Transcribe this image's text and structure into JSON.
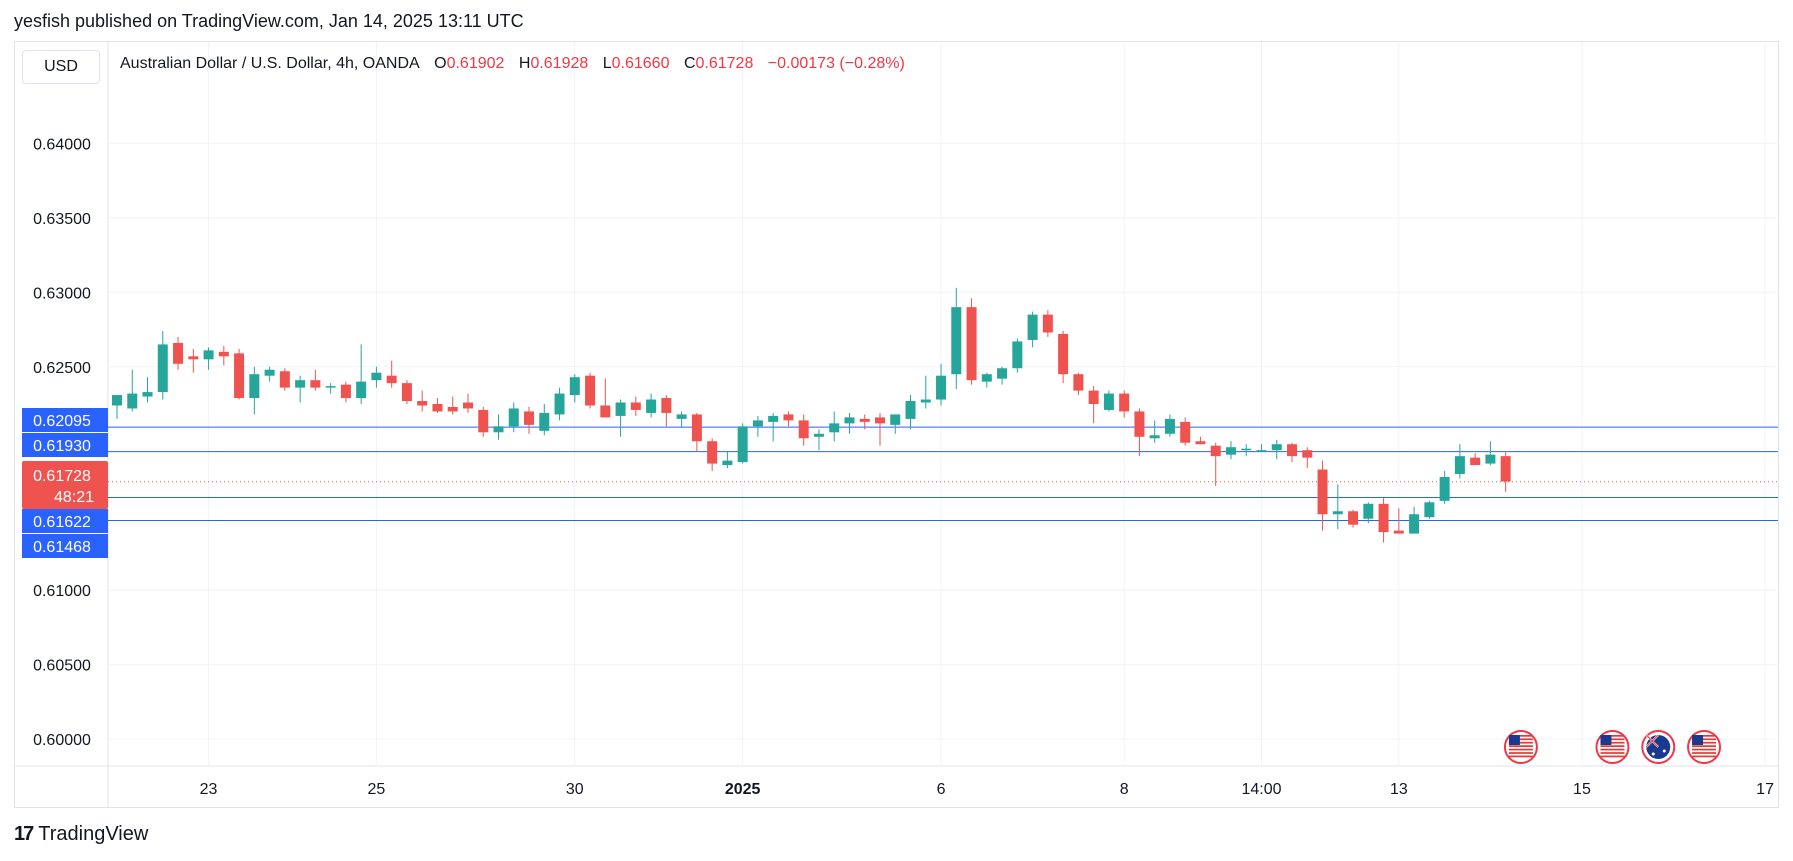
{
  "header": {
    "publisher_line": "yesfish published on TradingView.com, Jan 14, 2025 13:11 UTC"
  },
  "toolbar": {
    "currency_label": "USD"
  },
  "legend": {
    "symbol": "Australian Dollar / U.S. Dollar, 4h, OANDA",
    "open_label": "O",
    "open_value": "0.61902",
    "high_label": "H",
    "high_value": "0.61928",
    "low_label": "L",
    "low_value": "0.61660",
    "close_label": "C",
    "close_value": "0.61728",
    "change": "−0.00173 (−0.28%)"
  },
  "footer": {
    "brand": "TradingView",
    "brand_mark": "17"
  },
  "colors": {
    "up": "#26a69a",
    "down": "#ef5350",
    "hline": "#2962ff",
    "grid": "#f0f3fa",
    "price_tag": "#ef5350",
    "level_tag": "#2962ff"
  },
  "chart_data": {
    "type": "candlestick",
    "title": "Australian Dollar / U.S. Dollar, 4h, OANDA",
    "ylim": [
      0.5982,
      0.6468
    ],
    "y_ticks": [
      "0.64000",
      "0.63500",
      "0.63000",
      "0.62500",
      "0.61000",
      "0.60500",
      "0.60000"
    ],
    "y_tick_values": [
      0.64,
      0.635,
      0.63,
      0.625,
      0.61,
      0.605,
      0.6
    ],
    "x_ticks": [
      {
        "label": "23",
        "index": 6,
        "bold": false
      },
      {
        "label": "25",
        "index": 17,
        "bold": false
      },
      {
        "label": "30",
        "index": 30,
        "bold": false
      },
      {
        "label": "2025",
        "index": 41,
        "bold": true
      },
      {
        "label": "6",
        "index": 54,
        "bold": false
      },
      {
        "label": "8",
        "index": 66,
        "bold": false
      },
      {
        "label": "14:00",
        "index": 75,
        "bold": false
      },
      {
        "label": "13",
        "index": 84,
        "bold": false
      },
      {
        "label": "15",
        "index": 96,
        "bold": false
      },
      {
        "label": "17",
        "index": 108,
        "bold": false
      }
    ],
    "horizontal_levels": [
      {
        "label": "0.62095",
        "value": 0.62095
      },
      {
        "label": "0.61930",
        "value": 0.6193
      },
      {
        "label": "0.61622",
        "value": 0.61622
      },
      {
        "label": "0.61468",
        "value": 0.61468
      }
    ],
    "current_price": {
      "label": "0.61728",
      "value": 0.61728,
      "countdown": "48:21"
    },
    "event_flags": [
      {
        "index": 92,
        "country": "US"
      },
      {
        "index": 98,
        "country": "US"
      },
      {
        "index": 101,
        "country": "AU"
      },
      {
        "index": 104,
        "country": "US"
      }
    ],
    "candles": [
      {
        "o": 0.6224,
        "h": 0.6231,
        "l": 0.6215,
        "c": 0.6231
      },
      {
        "o": 0.6222,
        "h": 0.6248,
        "l": 0.622,
        "c": 0.6232
      },
      {
        "o": 0.623,
        "h": 0.6243,
        "l": 0.6226,
        "c": 0.6233
      },
      {
        "o": 0.6233,
        "h": 0.6274,
        "l": 0.6228,
        "c": 0.6265
      },
      {
        "o": 0.6266,
        "h": 0.627,
        "l": 0.6248,
        "c": 0.6252
      },
      {
        "o": 0.6257,
        "h": 0.6262,
        "l": 0.6246,
        "c": 0.6255
      },
      {
        "o": 0.6255,
        "h": 0.6263,
        "l": 0.6248,
        "c": 0.6261
      },
      {
        "o": 0.626,
        "h": 0.6264,
        "l": 0.6251,
        "c": 0.6257
      },
      {
        "o": 0.6259,
        "h": 0.6262,
        "l": 0.6228,
        "c": 0.6229
      },
      {
        "o": 0.6229,
        "h": 0.625,
        "l": 0.6218,
        "c": 0.6245
      },
      {
        "o": 0.6244,
        "h": 0.625,
        "l": 0.624,
        "c": 0.6248
      },
      {
        "o": 0.6247,
        "h": 0.6249,
        "l": 0.6234,
        "c": 0.6236
      },
      {
        "o": 0.6236,
        "h": 0.6244,
        "l": 0.6226,
        "c": 0.6241
      },
      {
        "o": 0.6241,
        "h": 0.6248,
        "l": 0.6234,
        "c": 0.6236
      },
      {
        "o": 0.6236,
        "h": 0.6239,
        "l": 0.6232,
        "c": 0.6237
      },
      {
        "o": 0.6238,
        "h": 0.624,
        "l": 0.6226,
        "c": 0.6229
      },
      {
        "o": 0.6229,
        "h": 0.6265,
        "l": 0.6225,
        "c": 0.624
      },
      {
        "o": 0.6241,
        "h": 0.625,
        "l": 0.6236,
        "c": 0.6246
      },
      {
        "o": 0.6244,
        "h": 0.6254,
        "l": 0.6236,
        "c": 0.6239
      },
      {
        "o": 0.6239,
        "h": 0.6241,
        "l": 0.6225,
        "c": 0.6227
      },
      {
        "o": 0.6227,
        "h": 0.6234,
        "l": 0.622,
        "c": 0.6224
      },
      {
        "o": 0.6225,
        "h": 0.6229,
        "l": 0.6219,
        "c": 0.622
      },
      {
        "o": 0.6223,
        "h": 0.623,
        "l": 0.6218,
        "c": 0.622
      },
      {
        "o": 0.6226,
        "h": 0.6232,
        "l": 0.6219,
        "c": 0.6222
      },
      {
        "o": 0.6221,
        "h": 0.6223,
        "l": 0.6203,
        "c": 0.6206
      },
      {
        "o": 0.6206,
        "h": 0.6218,
        "l": 0.6201,
        "c": 0.621
      },
      {
        "o": 0.621,
        "h": 0.6226,
        "l": 0.6206,
        "c": 0.6222
      },
      {
        "o": 0.622,
        "h": 0.6223,
        "l": 0.6205,
        "c": 0.6211
      },
      {
        "o": 0.6207,
        "h": 0.6225,
        "l": 0.6204,
        "c": 0.6219
      },
      {
        "o": 0.6218,
        "h": 0.6236,
        "l": 0.6214,
        "c": 0.6232
      },
      {
        "o": 0.6231,
        "h": 0.6245,
        "l": 0.6226,
        "c": 0.6243
      },
      {
        "o": 0.6244,
        "h": 0.6246,
        "l": 0.6222,
        "c": 0.6224
      },
      {
        "o": 0.6224,
        "h": 0.6242,
        "l": 0.6216,
        "c": 0.6216
      },
      {
        "o": 0.6217,
        "h": 0.6228,
        "l": 0.6203,
        "c": 0.6226
      },
      {
        "o": 0.6226,
        "h": 0.623,
        "l": 0.6217,
        "c": 0.6221
      },
      {
        "o": 0.6219,
        "h": 0.6232,
        "l": 0.6216,
        "c": 0.6228
      },
      {
        "o": 0.6229,
        "h": 0.6231,
        "l": 0.621,
        "c": 0.6219
      },
      {
        "o": 0.6215,
        "h": 0.622,
        "l": 0.6209,
        "c": 0.6218
      },
      {
        "o": 0.6218,
        "h": 0.6219,
        "l": 0.6193,
        "c": 0.62
      },
      {
        "o": 0.62,
        "h": 0.6202,
        "l": 0.618,
        "c": 0.6185
      },
      {
        "o": 0.6184,
        "h": 0.6193,
        "l": 0.6182,
        "c": 0.6187
      },
      {
        "o": 0.6186,
        "h": 0.6212,
        "l": 0.6185,
        "c": 0.621
      },
      {
        "o": 0.621,
        "h": 0.6217,
        "l": 0.6203,
        "c": 0.6214
      },
      {
        "o": 0.6213,
        "h": 0.6219,
        "l": 0.62,
        "c": 0.6217
      },
      {
        "o": 0.6218,
        "h": 0.622,
        "l": 0.621,
        "c": 0.6214
      },
      {
        "o": 0.6214,
        "h": 0.6218,
        "l": 0.6197,
        "c": 0.6202
      },
      {
        "o": 0.6203,
        "h": 0.6208,
        "l": 0.6194,
        "c": 0.6205
      },
      {
        "o": 0.6206,
        "h": 0.622,
        "l": 0.62,
        "c": 0.6212
      },
      {
        "o": 0.6212,
        "h": 0.6219,
        "l": 0.6205,
        "c": 0.6216
      },
      {
        "o": 0.6215,
        "h": 0.6218,
        "l": 0.6208,
        "c": 0.6213
      },
      {
        "o": 0.6216,
        "h": 0.6219,
        "l": 0.6197,
        "c": 0.6212
      },
      {
        "o": 0.6211,
        "h": 0.6218,
        "l": 0.6205,
        "c": 0.6218
      },
      {
        "o": 0.6215,
        "h": 0.6231,
        "l": 0.6208,
        "c": 0.6227
      },
      {
        "o": 0.6226,
        "h": 0.6244,
        "l": 0.6222,
        "c": 0.6228
      },
      {
        "o": 0.6228,
        "h": 0.6252,
        "l": 0.6224,
        "c": 0.6244
      },
      {
        "o": 0.6245,
        "h": 0.6303,
        "l": 0.6235,
        "c": 0.629
      },
      {
        "o": 0.629,
        "h": 0.6296,
        "l": 0.6238,
        "c": 0.6241
      },
      {
        "o": 0.624,
        "h": 0.6246,
        "l": 0.6236,
        "c": 0.6245
      },
      {
        "o": 0.6242,
        "h": 0.625,
        "l": 0.6238,
        "c": 0.6249
      },
      {
        "o": 0.6249,
        "h": 0.6269,
        "l": 0.6246,
        "c": 0.6267
      },
      {
        "o": 0.6268,
        "h": 0.6287,
        "l": 0.6263,
        "c": 0.6285
      },
      {
        "o": 0.6285,
        "h": 0.6288,
        "l": 0.627,
        "c": 0.6273
      },
      {
        "o": 0.6272,
        "h": 0.6274,
        "l": 0.6239,
        "c": 0.6245
      },
      {
        "o": 0.6245,
        "h": 0.6246,
        "l": 0.6231,
        "c": 0.6234
      },
      {
        "o": 0.6234,
        "h": 0.6237,
        "l": 0.6212,
        "c": 0.6225
      },
      {
        "o": 0.6221,
        "h": 0.6234,
        "l": 0.622,
        "c": 0.6232
      },
      {
        "o": 0.6232,
        "h": 0.6234,
        "l": 0.6216,
        "c": 0.622
      },
      {
        "o": 0.622,
        "h": 0.6222,
        "l": 0.619,
        "c": 0.6203
      },
      {
        "o": 0.6202,
        "h": 0.6214,
        "l": 0.6199,
        "c": 0.6204
      },
      {
        "o": 0.6205,
        "h": 0.6218,
        "l": 0.6203,
        "c": 0.6215
      },
      {
        "o": 0.6213,
        "h": 0.6216,
        "l": 0.6197,
        "c": 0.6199
      },
      {
        "o": 0.62,
        "h": 0.6203,
        "l": 0.6198,
        "c": 0.6198
      },
      {
        "o": 0.6197,
        "h": 0.6199,
        "l": 0.617,
        "c": 0.619
      },
      {
        "o": 0.6191,
        "h": 0.62,
        "l": 0.6188,
        "c": 0.6196
      },
      {
        "o": 0.6194,
        "h": 0.6198,
        "l": 0.619,
        "c": 0.6195
      },
      {
        "o": 0.6193,
        "h": 0.6198,
        "l": 0.6193,
        "c": 0.6194
      },
      {
        "o": 0.6194,
        "h": 0.6201,
        "l": 0.6188,
        "c": 0.6198
      },
      {
        "o": 0.6198,
        "h": 0.6199,
        "l": 0.6186,
        "c": 0.619
      },
      {
        "o": 0.6194,
        "h": 0.6196,
        "l": 0.6182,
        "c": 0.6189
      },
      {
        "o": 0.6181,
        "h": 0.6187,
        "l": 0.614,
        "c": 0.6151
      },
      {
        "o": 0.6151,
        "h": 0.6171,
        "l": 0.6141,
        "c": 0.6153
      },
      {
        "o": 0.6153,
        "h": 0.6154,
        "l": 0.6142,
        "c": 0.6144
      },
      {
        "o": 0.6148,
        "h": 0.6159,
        "l": 0.6145,
        "c": 0.6158
      },
      {
        "o": 0.6158,
        "h": 0.6162,
        "l": 0.6132,
        "c": 0.6139
      },
      {
        "o": 0.614,
        "h": 0.6155,
        "l": 0.6138,
        "c": 0.6138
      },
      {
        "o": 0.6138,
        "h": 0.6156,
        "l": 0.6138,
        "c": 0.6151
      },
      {
        "o": 0.6149,
        "h": 0.616,
        "l": 0.6148,
        "c": 0.6159
      },
      {
        "o": 0.616,
        "h": 0.618,
        "l": 0.6158,
        "c": 0.6176
      },
      {
        "o": 0.6178,
        "h": 0.6198,
        "l": 0.6175,
        "c": 0.619
      },
      {
        "o": 0.6189,
        "h": 0.6192,
        "l": 0.6185,
        "c": 0.6184
      },
      {
        "o": 0.6185,
        "h": 0.62,
        "l": 0.6184,
        "c": 0.6191
      },
      {
        "o": 0.619,
        "h": 0.6193,
        "l": 0.6166,
        "c": 0.6173
      }
    ]
  }
}
